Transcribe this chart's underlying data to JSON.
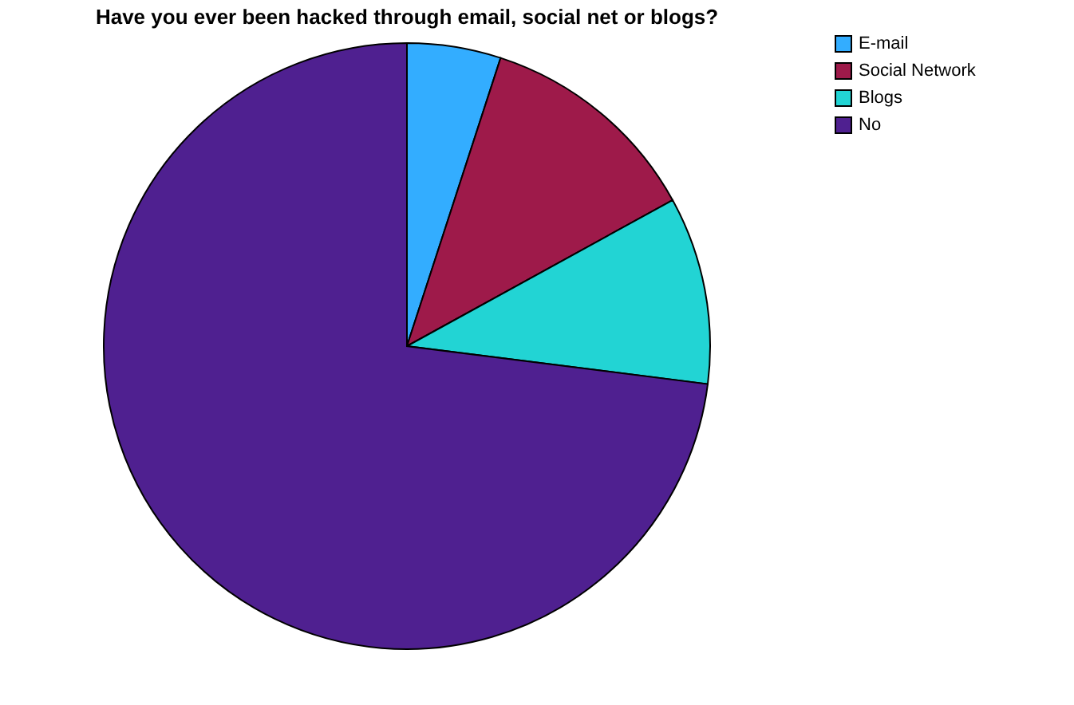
{
  "chart_data": {
    "type": "pie",
    "title": "Have you ever been hacked through email, social net or blogs?",
    "categories": [
      "E-mail",
      "Social Network",
      "Blogs",
      "No"
    ],
    "values": [
      5,
      12,
      10,
      73
    ],
    "colors": [
      "#33adff",
      "#9e1a4a",
      "#22d4d4",
      "#4f2090"
    ],
    "legend": "top right"
  }
}
